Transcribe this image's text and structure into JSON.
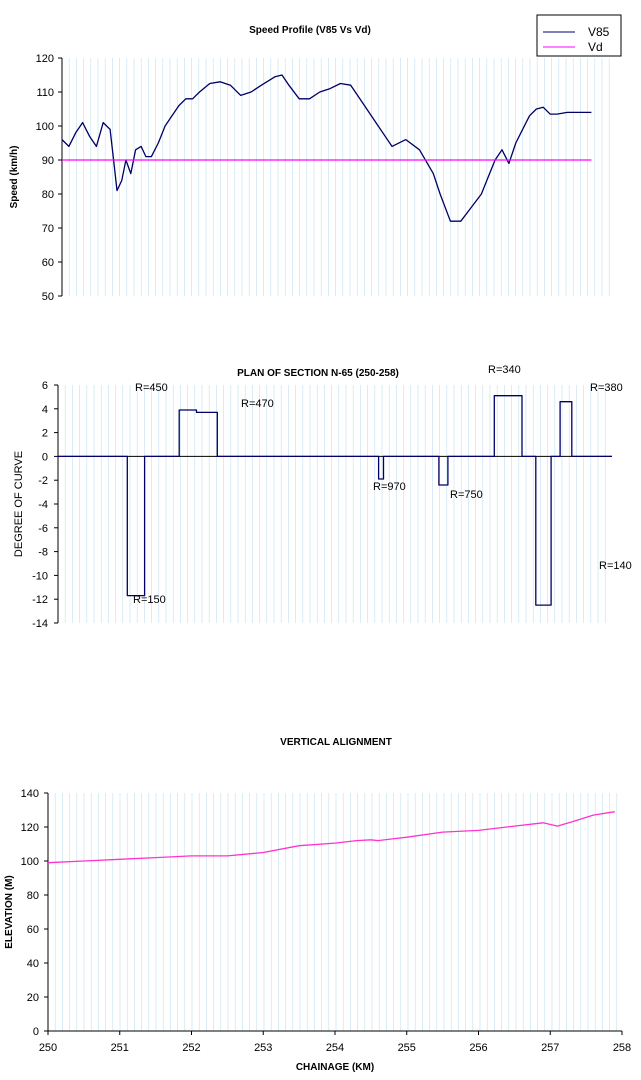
{
  "colors": {
    "v85": "#000066",
    "vd": "#ff00ff",
    "elevation": "#ff33cc",
    "curve": "#000066",
    "grid": "#c0e0f0"
  },
  "chart_data": [
    {
      "type": "line",
      "title": "Speed Profile (V85 Vs Vd)",
      "xlabel": "",
      "ylabel": "Speed (km/h)",
      "ylim": [
        50,
        120
      ],
      "yticks": [
        "50",
        "60",
        "70",
        "80",
        "90",
        "100",
        "110",
        "120"
      ],
      "xlim": [
        250,
        258
      ],
      "legend": {
        "placement": "top-right",
        "entries": [
          "V85",
          "Vd"
        ]
      },
      "grid": "vertical",
      "series": [
        {
          "name": "V85",
          "x": [
            250.0,
            250.1,
            250.2,
            250.3,
            250.4,
            250.5,
            250.6,
            250.7,
            250.75,
            250.8,
            250.87,
            250.93,
            251.0,
            251.07,
            251.15,
            251.22,
            251.3,
            251.4,
            251.5,
            251.6,
            251.7,
            251.8,
            251.9,
            252.0,
            252.15,
            252.3,
            252.45,
            252.6,
            252.75,
            252.9,
            253.1,
            253.2,
            253.3,
            253.45,
            253.6,
            253.75,
            253.9,
            254.05,
            254.2,
            254.4,
            254.6,
            254.8,
            255.0,
            255.2,
            255.4,
            255.5,
            255.65,
            255.8,
            255.95,
            256.1,
            256.2,
            256.3,
            256.4,
            256.5,
            256.6,
            256.7,
            256.8,
            256.9,
            257.0,
            257.1,
            257.2,
            257.35,
            257.5,
            257.62,
            257.7
          ],
          "values": [
            96,
            94,
            98,
            101,
            97,
            94,
            101,
            99,
            90,
            81,
            84,
            90,
            86,
            93,
            94,
            91,
            91,
            95,
            100,
            103,
            106,
            108,
            108,
            110,
            112.5,
            113,
            112,
            109,
            110,
            112,
            114.5,
            115,
            112,
            108,
            108,
            110,
            111,
            112.5,
            112,
            106,
            100,
            94,
            96,
            93,
            86,
            80,
            72,
            72,
            76,
            80,
            85,
            90,
            93,
            89,
            95,
            99,
            103,
            105,
            105.5,
            103.5,
            103.5,
            104,
            104,
            104,
            104
          ]
        },
        {
          "name": "Vd",
          "x": [
            250.0,
            257.7
          ],
          "values": [
            90,
            90
          ]
        }
      ]
    },
    {
      "type": "line",
      "title": "PLAN OF SECTION N-65 (250-258)",
      "xlabel": "",
      "ylabel": "DEGREE OF CURVE",
      "ylim": [
        -14,
        6
      ],
      "yticks": [
        "-14",
        "-12",
        "-10",
        "-8",
        "-6",
        "-4",
        "-2",
        "0",
        "2",
        "4",
        "6"
      ],
      "xlim": [
        250,
        258
      ],
      "grid": "vertical",
      "series": [
        {
          "name": "",
          "x": [
            250.0,
            251.0,
            251.0,
            251.25,
            251.25,
            251.75,
            251.75,
            252.0,
            252.0,
            252.3,
            252.3,
            254.63,
            254.63,
            254.7,
            254.7,
            255.5,
            255.5,
            255.63,
            255.63,
            256.3,
            256.3,
            256.7,
            256.7,
            256.9,
            256.9,
            257.12,
            257.12,
            257.25,
            257.25,
            257.42,
            257.42,
            258.0
          ],
          "values": [
            0,
            0,
            -11.7,
            -11.7,
            0,
            0,
            3.9,
            3.9,
            3.7,
            3.7,
            0,
            0,
            -1.9,
            -1.9,
            0,
            0,
            -2.4,
            -2.4,
            0,
            0,
            5.1,
            5.1,
            0,
            0,
            -12.5,
            -12.5,
            0,
            0,
            4.6,
            4.6,
            0,
            0
          ]
        }
      ],
      "annotations": [
        "R=450",
        "R=470",
        "R=150",
        "R=970",
        "R=750",
        "R=340",
        "R=380",
        "R=140"
      ]
    },
    {
      "type": "line",
      "title": "VERTICAL ALIGNMENT",
      "xlabel": "CHAINAGE (KM)",
      "ylabel": "ELEVATION (M)",
      "ylim": [
        0,
        140
      ],
      "yticks": [
        "0",
        "20",
        "40",
        "60",
        "80",
        "100",
        "120",
        "140"
      ],
      "xticks": [
        "250",
        "251",
        "252",
        "253",
        "254",
        "255",
        "256",
        "257",
        "258"
      ],
      "xlim": [
        250,
        258
      ],
      "grid": "vertical",
      "series": [
        {
          "name": "",
          "x": [
            250.0,
            250.5,
            251.0,
            251.5,
            252.0,
            252.5,
            253.0,
            253.5,
            254.0,
            254.3,
            254.5,
            254.6,
            254.8,
            255.0,
            255.5,
            256.0,
            256.5,
            256.9,
            257.1,
            257.3,
            257.6,
            257.9
          ],
          "values": [
            99,
            100,
            101,
            102,
            103,
            103,
            105,
            109,
            110.5,
            112,
            112.5,
            112,
            113,
            114,
            117,
            118,
            120.5,
            122.5,
            120.5,
            123,
            127,
            129
          ]
        }
      ]
    }
  ]
}
